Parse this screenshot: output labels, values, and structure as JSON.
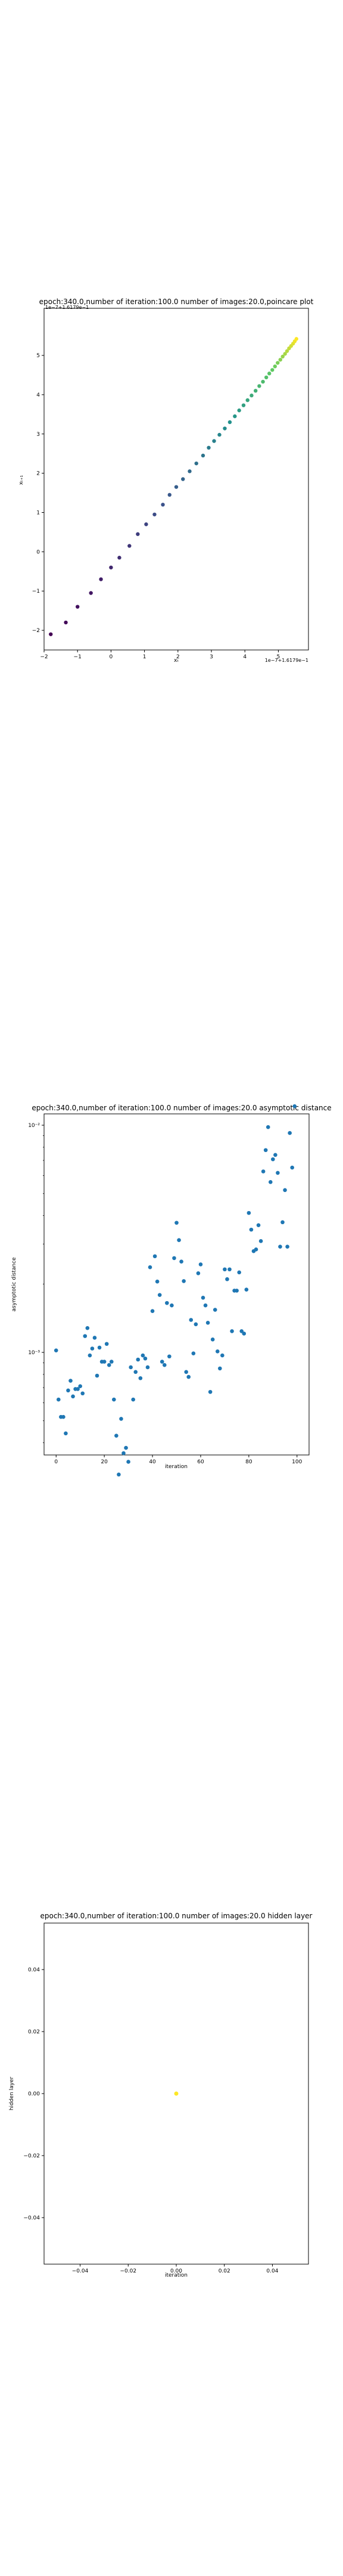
{
  "chart_data": [
    {
      "type": "scatter",
      "title": "epoch:340.0,number of iteration:100.0 number of images:20.0,poincare plot",
      "xlabel": "xₜ",
      "ylabel": "xₜ₊₁",
      "x_offset_text": "1e−7+1.6179e−1",
      "y_offset_text": "1e−7+1.6179e−1",
      "xticks": [
        "−2",
        "−1",
        "0",
        "1",
        "2",
        "3",
        "4",
        "5"
      ],
      "yticks": [
        "−2",
        "−1",
        "0",
        "1",
        "2",
        "3",
        "4",
        "5"
      ],
      "xlim": [
        -2.0,
        5.9
      ],
      "ylim": [
        -2.5,
        6.2
      ],
      "colormap": "viridis",
      "x": [
        -1.8,
        -1.35,
        -1.0,
        -0.6,
        -0.3,
        0.0,
        0.25,
        0.55,
        0.8,
        1.05,
        1.3,
        1.55,
        1.75,
        1.95,
        2.15,
        2.35,
        2.55,
        2.75,
        2.92,
        3.08,
        3.24,
        3.4,
        3.55,
        3.7,
        3.83,
        3.96,
        4.08,
        4.2,
        4.32,
        4.43,
        4.54,
        4.64,
        4.73,
        4.82,
        4.9,
        4.98,
        5.06,
        5.13,
        5.2,
        5.26,
        5.32,
        5.38,
        5.44,
        5.49,
        5.54
      ],
      "y": [
        -2.1,
        -1.8,
        -1.4,
        -1.05,
        -0.7,
        -0.4,
        -0.15,
        0.15,
        0.45,
        0.7,
        0.95,
        1.2,
        1.45,
        1.65,
        1.85,
        2.05,
        2.25,
        2.45,
        2.65,
        2.82,
        2.98,
        3.14,
        3.3,
        3.45,
        3.6,
        3.73,
        3.86,
        3.98,
        4.1,
        4.22,
        4.33,
        4.44,
        4.54,
        4.63,
        4.72,
        4.81,
        4.89,
        4.97,
        5.04,
        5.11,
        5.18,
        5.24,
        5.3,
        5.36,
        5.42
      ]
    },
    {
      "type": "scatter",
      "title": "epoch:340.0,number of iteration:100.0  number of images:20.0 asymptotic distance",
      "xlabel": "iteration",
      "ylabel": "asymptotic distance",
      "yscale": "log",
      "xlim": [
        -5,
        105
      ],
      "xticks": [
        "0",
        "20",
        "40",
        "60",
        "80",
        "100"
      ],
      "yticks": [
        "10⁻²",
        "10⁻³"
      ],
      "color": "#1f77b4",
      "x": [
        0,
        1,
        2,
        3,
        4,
        5,
        6,
        7,
        8,
        9,
        10,
        11,
        12,
        13,
        14,
        15,
        16,
        17,
        18,
        19,
        20,
        21,
        22,
        23,
        24,
        25,
        26,
        27,
        28,
        29,
        30,
        31,
        32,
        33,
        34,
        35,
        36,
        37,
        38,
        39,
        40,
        41,
        42,
        43,
        44,
        45,
        46,
        47,
        48,
        49,
        50,
        51,
        52,
        53,
        54,
        55,
        56,
        57,
        58,
        59,
        60,
        61,
        62,
        63,
        64,
        65,
        66,
        67,
        68,
        69,
        70,
        71,
        72,
        73,
        74,
        75,
        76,
        77,
        78,
        79,
        80,
        81,
        82,
        83,
        84,
        85,
        86,
        87,
        88,
        89,
        90,
        91,
        92,
        93,
        94,
        95,
        96,
        97,
        98,
        99
      ],
      "y": [
        0.00102,
        0.00062,
        0.00052,
        0.00052,
        0.00044,
        0.00068,
        0.00075,
        0.00064,
        0.00069,
        0.00069,
        0.00071,
        0.00066,
        0.00118,
        0.00128,
        0.00097,
        0.00104,
        0.00116,
        0.00079,
        0.00105,
        0.00091,
        0.00091,
        0.00109,
        0.00088,
        0.00091,
        0.00062,
        0.00043,
        0.00029,
        0.00051,
        0.00036,
        0.00038,
        0.00033,
        0.00086,
        0.00062,
        0.00082,
        0.00093,
        0.00077,
        0.00097,
        0.00094,
        0.00086,
        0.00237,
        0.00152,
        0.00265,
        0.00205,
        0.00179,
        0.00091,
        0.00088,
        0.00165,
        0.00096,
        0.00161,
        0.0026,
        0.00372,
        0.00312,
        0.00251,
        0.00206,
        0.00082,
        0.00078,
        0.00139,
        0.00099,
        0.00133,
        0.00223,
        0.00244,
        0.00174,
        0.00161,
        0.00135,
        0.00067,
        0.00114,
        0.00154,
        0.00101,
        0.00085,
        0.00097,
        0.00232,
        0.0021,
        0.00232,
        0.00124,
        0.00187,
        0.00187,
        0.00225,
        0.00124,
        0.00121,
        0.00189,
        0.00411,
        0.00347,
        0.00279,
        0.00284,
        0.00363,
        0.00309,
        0.00626,
        0.00777,
        0.00981,
        0.00562,
        0.00708,
        0.0074,
        0.00617,
        0.00292,
        0.00374,
        0.00518,
        0.00292,
        0.00924,
        0.00651,
        0.01212
      ]
    },
    {
      "type": "scatter",
      "title": "epoch:340.0,number of iteration:100.0  number of images:20.0 hidden layer",
      "xlabel": "iteration",
      "ylabel": "hidden layer",
      "xlim": [
        -0.055,
        0.055
      ],
      "ylim": [
        -0.055,
        0.055
      ],
      "xticks": [
        "−0.04",
        "−0.02",
        "0.00",
        "0.02",
        "0.04"
      ],
      "yticks": [
        "0.04",
        "0.02",
        "0.00",
        "−0.02",
        "−0.04"
      ],
      "color": "#fde725",
      "x": [
        0.0
      ],
      "y": [
        0.0
      ]
    }
  ]
}
